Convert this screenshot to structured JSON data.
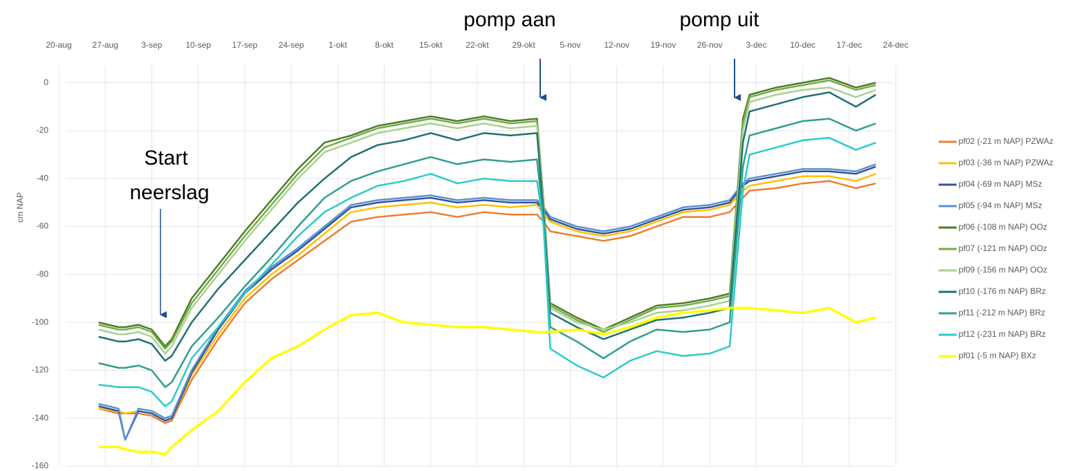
{
  "chart_data": {
    "type": "line",
    "y_label": "cm NAP",
    "annotations": [
      "pomp aan",
      "pomp uit",
      "Start",
      "neerslag"
    ],
    "x": [
      6,
      9,
      10,
      12,
      14,
      16,
      17,
      20,
      24,
      28,
      32,
      36,
      40,
      44,
      48,
      52,
      56,
      60,
      64,
      68,
      72,
      73,
      74,
      78,
      82,
      86,
      90,
      94,
      98,
      101,
      103,
      104,
      108,
      112,
      116,
      120,
      123
    ],
    "xlim": [
      0,
      126
    ],
    "xticks": [
      {
        "value": 0,
        "label": "20-aug"
      },
      {
        "value": 7,
        "label": "27-aug"
      },
      {
        "value": 14,
        "label": "3-sep"
      },
      {
        "value": 21,
        "label": "10-sep"
      },
      {
        "value": 28,
        "label": "17-sep"
      },
      {
        "value": 35,
        "label": "24-sep"
      },
      {
        "value": 42,
        "label": "1-okt"
      },
      {
        "value": 49,
        "label": "8-okt"
      },
      {
        "value": 56,
        "label": "15-okt"
      },
      {
        "value": 63,
        "label": "22-okt"
      },
      {
        "value": 70,
        "label": "29-okt"
      },
      {
        "value": 77,
        "label": "5-nov"
      },
      {
        "value": 84,
        "label": "12-nov"
      },
      {
        "value": 91,
        "label": "19-nov"
      },
      {
        "value": 98,
        "label": "26-nov"
      },
      {
        "value": 105,
        "label": "3-dec"
      },
      {
        "value": 112,
        "label": "10-dec"
      },
      {
        "value": 119,
        "label": "17-dec"
      },
      {
        "value": 126,
        "label": "24-dec"
      }
    ],
    "ylim": [
      -160,
      10
    ],
    "yticks": [
      -160,
      -140,
      -120,
      -100,
      -80,
      -60,
      -40,
      -20,
      0
    ],
    "grid": true,
    "legend": "right",
    "series": [
      {
        "name": "pf02 (-21 m NAP) PZWAz",
        "color": "#ed7d31",
        "values": [
          -136,
          -138,
          -138,
          -138,
          -139,
          -142,
          -141,
          -124,
          -107,
          -92,
          -82,
          -74,
          -66,
          -58,
          -56,
          -55,
          -54,
          -56,
          -54,
          -55,
          -55,
          -58,
          -62,
          -64,
          -66,
          -64,
          -60,
          -56,
          -56,
          -54,
          -48,
          -45,
          -44,
          -42,
          -41,
          -44,
          -42
        ]
      },
      {
        "name": "pf03 (-36 m NAP) PZWAz",
        "color": "#ffc000",
        "values": [
          -136,
          -137,
          -138,
          -137,
          -138,
          -141,
          -140,
          -122,
          -105,
          -90,
          -80,
          -72,
          -63,
          -54,
          -52,
          -51,
          -50,
          -52,
          -51,
          -52,
          -51,
          -55,
          -58,
          -62,
          -64,
          -62,
          -58,
          -54,
          -53,
          -51,
          -45,
          -43,
          -41,
          -39,
          -39,
          -41,
          -38
        ]
      },
      {
        "name": "pf04 (-69 m NAP) MSz",
        "color": "#2f5597",
        "values": [
          -135,
          -137,
          -149,
          -137,
          -138,
          -141,
          -140,
          -121,
          -103,
          -88,
          -78,
          -70,
          -61,
          -52,
          -50,
          -49,
          -48,
          -50,
          -49,
          -50,
          -50,
          -53,
          -57,
          -61,
          -63,
          -61,
          -57,
          -53,
          -52,
          -50,
          -43,
          -41,
          -39,
          -37,
          -37,
          -38,
          -35
        ]
      },
      {
        "name": "pf05 (-94 m NAP) MSz",
        "color": "#5b8fd0",
        "values": [
          -134,
          -136,
          -149,
          -136,
          -137,
          -140,
          -139,
          -120,
          -102,
          -87,
          -77,
          -69,
          -60,
          -51,
          -49,
          -48,
          -47,
          -49,
          -48,
          -49,
          -49,
          -52,
          -56,
          -60,
          -62,
          -60,
          -56,
          -52,
          -51,
          -49,
          -42,
          -40,
          -38,
          -36,
          -36,
          -37,
          -34
        ]
      },
      {
        "name": "pf06 (-108 m NAP) OOz",
        "color": "#4e7a27",
        "values": [
          -100,
          -102,
          -102,
          -101,
          -103,
          -110,
          -107,
          -90,
          -76,
          -62,
          -49,
          -36,
          -25,
          -22,
          -18,
          -16,
          -14,
          -16,
          -14,
          -16,
          -15,
          -50,
          -92,
          -98,
          -103,
          -98,
          -93,
          -92,
          -90,
          -88,
          -15,
          -5,
          -2,
          0,
          2,
          -2,
          0
        ]
      },
      {
        "name": "pf07 (-121 m NAP) OOz",
        "color": "#70ad47",
        "values": [
          -101,
          -103,
          -103,
          -102,
          -104,
          -111,
          -108,
          -92,
          -78,
          -64,
          -51,
          -38,
          -27,
          -23,
          -19,
          -17,
          -15,
          -17,
          -15,
          -17,
          -16,
          -51,
          -93,
          -99,
          -104,
          -99,
          -94,
          -93,
          -91,
          -89,
          -17,
          -6,
          -3,
          -1,
          1,
          -3,
          -1
        ]
      },
      {
        "name": "pf09 (-156 m NAP) OOz",
        "color": "#a9d18e",
        "values": [
          -103,
          -105,
          -105,
          -104,
          -106,
          -113,
          -110,
          -94,
          -80,
          -66,
          -53,
          -40,
          -29,
          -25,
          -21,
          -19,
          -17,
          -19,
          -17,
          -19,
          -18,
          -52,
          -94,
          -100,
          -103,
          -100,
          -96,
          -95,
          -93,
          -91,
          -20,
          -8,
          -5,
          -3,
          -2,
          -6,
          -3
        ]
      },
      {
        "name": "pf10 (-176 m NAP) BRz",
        "color": "#1f7070",
        "values": [
          -106,
          -108,
          -108,
          -107,
          -109,
          -116,
          -114,
          -100,
          -86,
          -74,
          -62,
          -50,
          -40,
          -31,
          -26,
          -24,
          -21,
          -24,
          -21,
          -22,
          -21,
          -55,
          -96,
          -102,
          -107,
          -103,
          -99,
          -98,
          -96,
          -94,
          -25,
          -12,
          -9,
          -6,
          -4,
          -10,
          -5
        ]
      },
      {
        "name": "pf11 (-212 m NAP) BRz",
        "color": "#2e9e8e",
        "values": [
          -117,
          -119,
          -119,
          -118,
          -120,
          -127,
          -125,
          -110,
          -98,
          -85,
          -73,
          -60,
          -48,
          -41,
          -37,
          -34,
          -31,
          -34,
          -32,
          -33,
          -32,
          -58,
          -102,
          -108,
          -115,
          -108,
          -103,
          -104,
          -103,
          -100,
          -35,
          -22,
          -19,
          -16,
          -15,
          -20,
          -17
        ]
      },
      {
        "name": "pf12 (-231 m NAP) BRz",
        "color": "#2ccaca",
        "values": [
          -126,
          -127,
          -127,
          -127,
          -129,
          -135,
          -133,
          -115,
          -102,
          -88,
          -76,
          -64,
          -54,
          -48,
          -43,
          -41,
          -38,
          -42,
          -40,
          -41,
          -41,
          -60,
          -111,
          -118,
          -123,
          -116,
          -112,
          -114,
          -113,
          -110,
          -45,
          -30,
          -27,
          -24,
          -23,
          -28,
          -25
        ]
      },
      {
        "name": "pf01 (-5 m NAP) BXz",
        "color": "#ffff00",
        "values": [
          -152,
          -152,
          -153,
          -154,
          -154,
          -155,
          -152,
          -145,
          -137,
          -125,
          -115,
          -110,
          -103,
          -97,
          -96,
          -100,
          -101,
          -102,
          -102,
          -103,
          -104,
          -104,
          -104,
          -103,
          -105,
          -102,
          -98,
          -96,
          -95,
          -94,
          -94,
          -94,
          -95,
          -96,
          -94,
          -100,
          -98
        ]
      }
    ]
  }
}
